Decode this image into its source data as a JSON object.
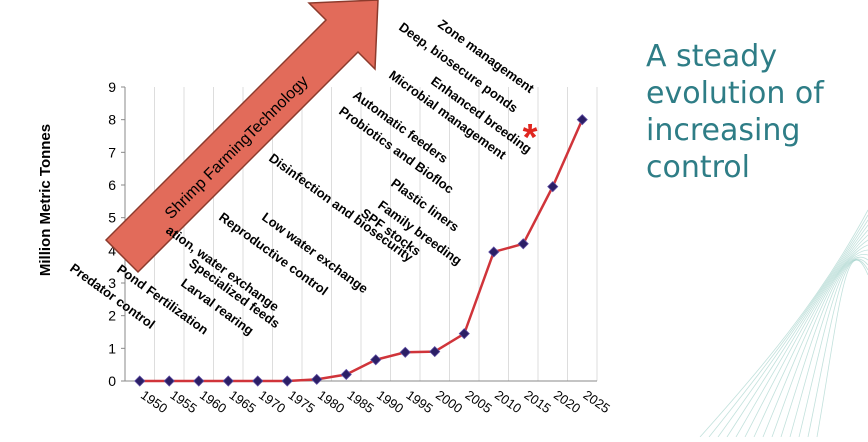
{
  "slide": {
    "heading_lines": [
      "A steady",
      "evolution of",
      "increasing",
      "control"
    ],
    "arrow_label": "Shrimp FarmingTechnology",
    "star": "*",
    "colors": {
      "heading": "#2e7d86",
      "arrow_fill": "#e26b5a",
      "arrow_stroke": "#8c3a2c",
      "line": "#d0343a",
      "marker": "#2b1f66",
      "star": "#e0261f",
      "grid": "#dddddd",
      "decor": "#8fc9c0"
    }
  },
  "chart_data": {
    "type": "line",
    "ylabel": "Million Metric Tonnes",
    "xlabel": "",
    "ylim": [
      0,
      9
    ],
    "yticks": [
      "0",
      "1",
      "2",
      "3",
      "4",
      "5",
      "6",
      "7",
      "8",
      "9"
    ],
    "categories": [
      "1950",
      "1955",
      "1960",
      "1965",
      "1970",
      "1975",
      "1980",
      "1985",
      "1990",
      "1995",
      "2000",
      "2005",
      "2010",
      "2015",
      "2020",
      "2025"
    ],
    "series": [
      {
        "values": [
          0,
          0,
          0,
          0,
          0,
          0,
          0.05,
          0.2,
          0.65,
          0.88,
          0.9,
          1.45,
          3.95,
          4.2,
          5.95,
          8.0
        ]
      }
    ],
    "grid": "vertical",
    "annotations": [
      "Predator control",
      "Pond Fertilization",
      "Larval rearing",
      "Specialized feeds",
      "ation, water exchange",
      "Reproductive control",
      "Low water exchange",
      "Disinfection and biosecurity",
      "SPF stocks",
      "Family breeding",
      "Plastic liners",
      "Probiotics and Biofloc",
      "Automatic feeders",
      "Microbial management",
      "Enhanced breeding",
      "Deep, biosecure ponds",
      "Zone management"
    ]
  }
}
